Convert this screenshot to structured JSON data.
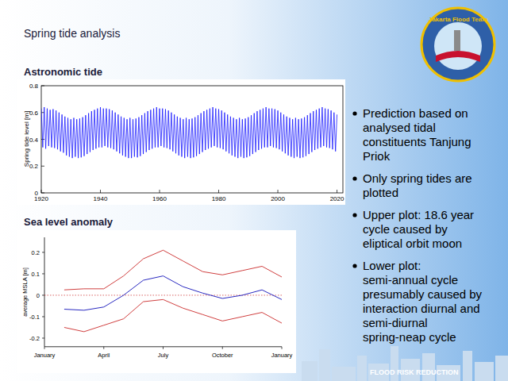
{
  "slide": {
    "title": "Spring tide analysis",
    "logo": "Jakarta Flood Team",
    "footer": "FLOOD RISK REDUCTION",
    "bullets": [
      [
        "Prediction based on",
        "analysed tidal",
        "constituents Tanjung",
        "Priok"
      ],
      [
        "Only spring tides are",
        "plotted"
      ],
      [
        "Upper plot: 18.6 year",
        "cycle caused by",
        "eliptical orbit moon"
      ],
      [
        "Lower plot:",
        "semi-annual cycle",
        "presumably caused by",
        "interaction diurnal and",
        "semi-diurnal",
        "spring-neap cycle"
      ]
    ]
  },
  "chart_data": [
    {
      "type": "line",
      "title": "Astronomic tide",
      "y_label": "Spring tide level [m]",
      "xlim": [
        1920,
        2022
      ],
      "xticks": [
        1920,
        1940,
        1960,
        1980,
        2000,
        2020
      ],
      "ylim": [
        0,
        0.8
      ],
      "yticks": [
        0,
        0.2,
        0.4,
        0.6,
        0.8
      ],
      "grid": false,
      "x": [
        1920,
        1920.5,
        1921,
        1921.5,
        1922,
        1922.5,
        1923,
        1923.5,
        1924,
        1924.5,
        1925,
        1925.5,
        1926,
        1926.5,
        1927,
        1927.5,
        1928,
        1928.5,
        1929,
        1929.5,
        1930,
        1930.5,
        1931,
        1931.5,
        1932,
        1932.5,
        1933,
        1933.5,
        1934,
        1934.5,
        1935,
        1935.5,
        1936,
        1936.5,
        1937,
        1937.5,
        1938,
        1938.5,
        1939,
        1939.5,
        1940,
        1940.5,
        1941,
        1941.5,
        1942,
        1942.5,
        1943,
        1943.5,
        1944,
        1944.5,
        1945,
        1945.5,
        1946,
        1946.5,
        1947,
        1947.5,
        1948,
        1948.5,
        1949,
        1949.5,
        1950,
        1950.5,
        1951,
        1951.5,
        1952,
        1952.5,
        1953,
        1953.5,
        1954,
        1954.5,
        1955,
        1955.5,
        1956,
        1956.5,
        1957,
        1957.5,
        1958,
        1958.5,
        1959,
        1959.5,
        1960,
        1960.5,
        1961,
        1961.5,
        1962,
        1962.5,
        1963,
        1963.5,
        1964,
        1964.5,
        1965,
        1965.5,
        1966,
        1966.5,
        1967,
        1967.5,
        1968,
        1968.5,
        1969,
        1969.5,
        1970,
        1970.5,
        1971,
        1971.5,
        1972,
        1972.5,
        1973,
        1973.5,
        1974,
        1974.5,
        1975,
        1975.5,
        1976,
        1976.5,
        1977,
        1977.5,
        1978,
        1978.5,
        1979,
        1979.5,
        1980,
        1980.5,
        1981,
        1981.5,
        1982,
        1982.5,
        1983,
        1983.5,
        1984,
        1984.5,
        1985,
        1985.5,
        1986,
        1986.5,
        1987,
        1987.5,
        1988,
        1988.5,
        1989,
        1989.5,
        1990,
        1990.5,
        1991,
        1991.5,
        1992,
        1992.5,
        1993,
        1993.5,
        1994,
        1994.5,
        1995,
        1995.5,
        1996,
        1996.5,
        1997,
        1997.5,
        1998,
        1998.5,
        1999,
        1999.5,
        2000,
        2000.5,
        2001,
        2001.5,
        2002,
        2002.5,
        2003,
        2003.5,
        2004,
        2004.5,
        2005,
        2005.5,
        2006,
        2006.5,
        2007,
        2007.5,
        2008,
        2008.5,
        2009,
        2009.5,
        2010,
        2010.5,
        2011,
        2011.5,
        2012,
        2012.5,
        2013,
        2013.5,
        2014,
        2014.5,
        2015,
        2015.5,
        2016,
        2016.5,
        2017,
        2017.5,
        2018,
        2018.5,
        2019,
        2019.5,
        2020
      ],
      "series": [
        {
          "color": "#1a1aff",
          "line_style": "solid",
          "values": [
            0.63,
            0.34,
            0.64,
            0.33,
            0.63,
            0.35,
            0.62,
            0.34,
            0.625,
            0.335,
            0.615,
            0.325,
            0.6,
            0.31,
            0.585,
            0.3,
            0.57,
            0.28,
            0.56,
            0.27,
            0.55,
            0.26,
            0.56,
            0.27,
            0.55,
            0.26,
            0.555,
            0.265,
            0.565,
            0.275,
            0.58,
            0.29,
            0.595,
            0.305,
            0.61,
            0.32,
            0.62,
            0.33,
            0.63,
            0.34,
            0.64,
            0.34,
            0.63,
            0.35,
            0.63,
            0.34,
            0.625,
            0.335,
            0.615,
            0.325,
            0.6,
            0.31,
            0.585,
            0.295,
            0.57,
            0.28,
            0.56,
            0.27,
            0.55,
            0.26,
            0.56,
            0.26,
            0.55,
            0.27,
            0.555,
            0.265,
            0.565,
            0.275,
            0.58,
            0.29,
            0.595,
            0.305,
            0.61,
            0.32,
            0.62,
            0.33,
            0.63,
            0.34,
            0.64,
            0.34,
            0.63,
            0.35,
            0.63,
            0.34,
            0.625,
            0.335,
            0.615,
            0.325,
            0.6,
            0.31,
            0.585,
            0.295,
            0.57,
            0.28,
            0.56,
            0.27,
            0.55,
            0.26,
            0.56,
            0.27,
            0.55,
            0.26,
            0.555,
            0.265,
            0.565,
            0.275,
            0.58,
            0.29,
            0.595,
            0.305,
            0.61,
            0.32,
            0.62,
            0.33,
            0.63,
            0.34,
            0.64,
            0.35,
            0.63,
            0.34,
            0.625,
            0.335,
            0.615,
            0.325,
            0.6,
            0.31,
            0.585,
            0.295,
            0.57,
            0.28,
            0.56,
            0.27,
            0.55,
            0.26,
            0.56,
            0.27,
            0.55,
            0.26,
            0.555,
            0.265,
            0.565,
            0.275,
            0.58,
            0.29,
            0.595,
            0.305,
            0.61,
            0.32,
            0.62,
            0.33,
            0.63,
            0.34,
            0.64,
            0.34,
            0.63,
            0.35,
            0.63,
            0.34,
            0.625,
            0.335,
            0.615,
            0.325,
            0.6,
            0.31,
            0.585,
            0.295,
            0.57,
            0.28,
            0.56,
            0.27,
            0.55,
            0.26,
            0.56,
            0.27,
            0.55,
            0.26,
            0.555,
            0.265,
            0.565,
            0.275,
            0.58,
            0.29,
            0.595,
            0.305,
            0.61,
            0.32,
            0.62,
            0.33,
            0.63,
            0.34,
            0.64,
            0.35,
            0.63,
            0.34,
            0.625,
            0.335,
            0.615,
            0.325,
            0.6,
            0.31,
            0.585
          ]
        }
      ]
    },
    {
      "type": "line",
      "title": "Sea level anomaly",
      "y_label": "average MSLA [m]",
      "xlim": [
        0,
        12
      ],
      "xticks": [
        {
          "value": 0,
          "label": "January"
        },
        {
          "value": 3,
          "label": "April"
        },
        {
          "value": 6,
          "label": "July"
        },
        {
          "value": 9,
          "label": "October"
        },
        {
          "value": 12,
          "label": "January"
        }
      ],
      "ylim": [
        -0.24,
        0.27
      ],
      "yticks": [
        -0.2,
        -0.1,
        0,
        0.1,
        0.2
      ],
      "grid": false,
      "reference_line": {
        "y": 0,
        "color": "#d04040",
        "line_style": "dotted"
      },
      "x": [
        1,
        2,
        3,
        4,
        5,
        6,
        7,
        8,
        9,
        10,
        11,
        12
      ],
      "series": [
        {
          "color": "#d04040",
          "line_style": "solid",
          "values": [
            0.025,
            0.03,
            0.03,
            0.09,
            0.17,
            0.21,
            0.16,
            0.11,
            0.095,
            0.115,
            0.135,
            0.085
          ]
        },
        {
          "color": "#2a2ac0",
          "line_style": "solid",
          "values": [
            -0.065,
            -0.07,
            -0.055,
            0.0,
            0.07,
            0.09,
            0.04,
            0.01,
            -0.015,
            0.0,
            0.025,
            -0.02
          ]
        },
        {
          "color": "#d04040",
          "line_style": "solid",
          "values": [
            -0.15,
            -0.17,
            -0.14,
            -0.11,
            -0.03,
            -0.02,
            -0.06,
            -0.09,
            -0.12,
            -0.1,
            -0.08,
            -0.13
          ]
        }
      ]
    }
  ]
}
